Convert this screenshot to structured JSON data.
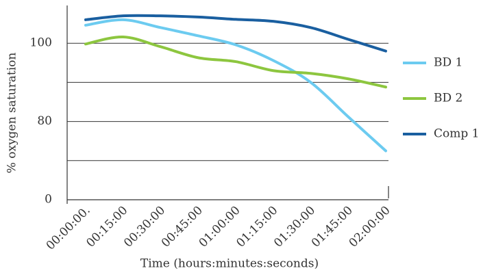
{
  "chart_data": {
    "type": "line",
    "xlabel": "Time (hours:minutes:seconds)",
    "ylabel": "% oxygen saturation",
    "categories": [
      "00:00:00.",
      "00:15:00",
      "00:30:00",
      "00:45:00",
      "01:00:00",
      "01:15:00",
      "01:30:00",
      "01:45:00",
      "02:00:00"
    ],
    "series": [
      {
        "name": "BD 1",
        "color": "#6ccbf0",
        "values": [
          104.6,
          106,
          104,
          101.9,
          99.6,
          95.6,
          90,
          81.2,
          72.5
        ]
      },
      {
        "name": "BD 2",
        "color": "#8dc63f",
        "values": [
          99.8,
          101.6,
          99.1,
          96.3,
          95.3,
          93,
          92.3,
          90.9,
          88.8
        ]
      },
      {
        "name": "Comp 1",
        "color": "#1a5fa0",
        "values": [
          106,
          107,
          107,
          106.7,
          106.1,
          105.6,
          104,
          101,
          98
        ]
      }
    ],
    "ylim": [
      60,
      110
    ],
    "yticks": [
      {
        "value": 60,
        "label": "0"
      },
      80,
      100
    ],
    "ygrid": [
      70,
      80,
      90,
      100
    ],
    "legend": "right"
  }
}
